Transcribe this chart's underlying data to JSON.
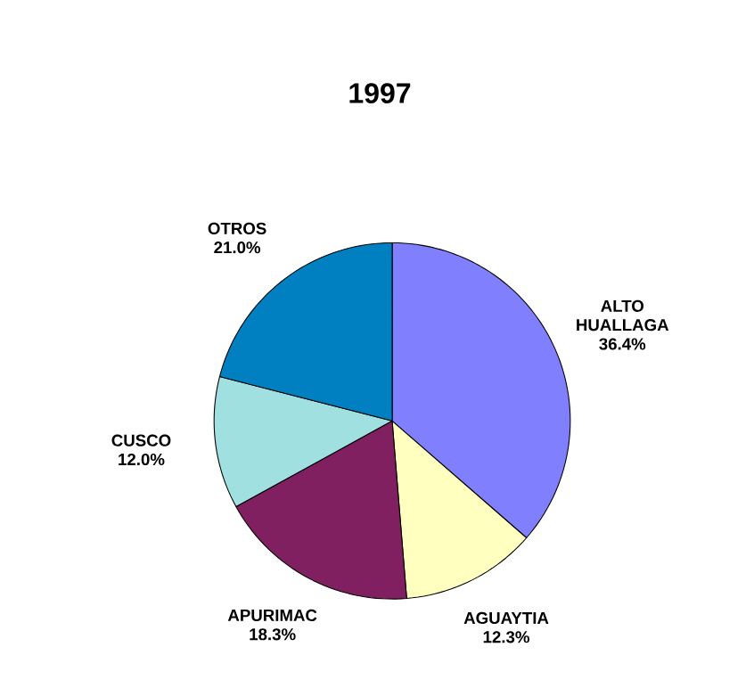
{
  "chart_data": {
    "type": "pie",
    "title": "1997",
    "categories": [
      "ALTO HUALLAGA",
      "AGUAYTIA",
      "APURIMAC",
      "CUSCO",
      "OTROS"
    ],
    "values": [
      36.4,
      12.3,
      18.3,
      12.0,
      21.0
    ],
    "value_labels": [
      "36.4%",
      "12.3%",
      "18.3%",
      "12.0%",
      "21.0%"
    ],
    "colors": [
      "#8080ff",
      "#ffffc0",
      "#802060",
      "#a0e0e0",
      "#0080c0"
    ]
  }
}
